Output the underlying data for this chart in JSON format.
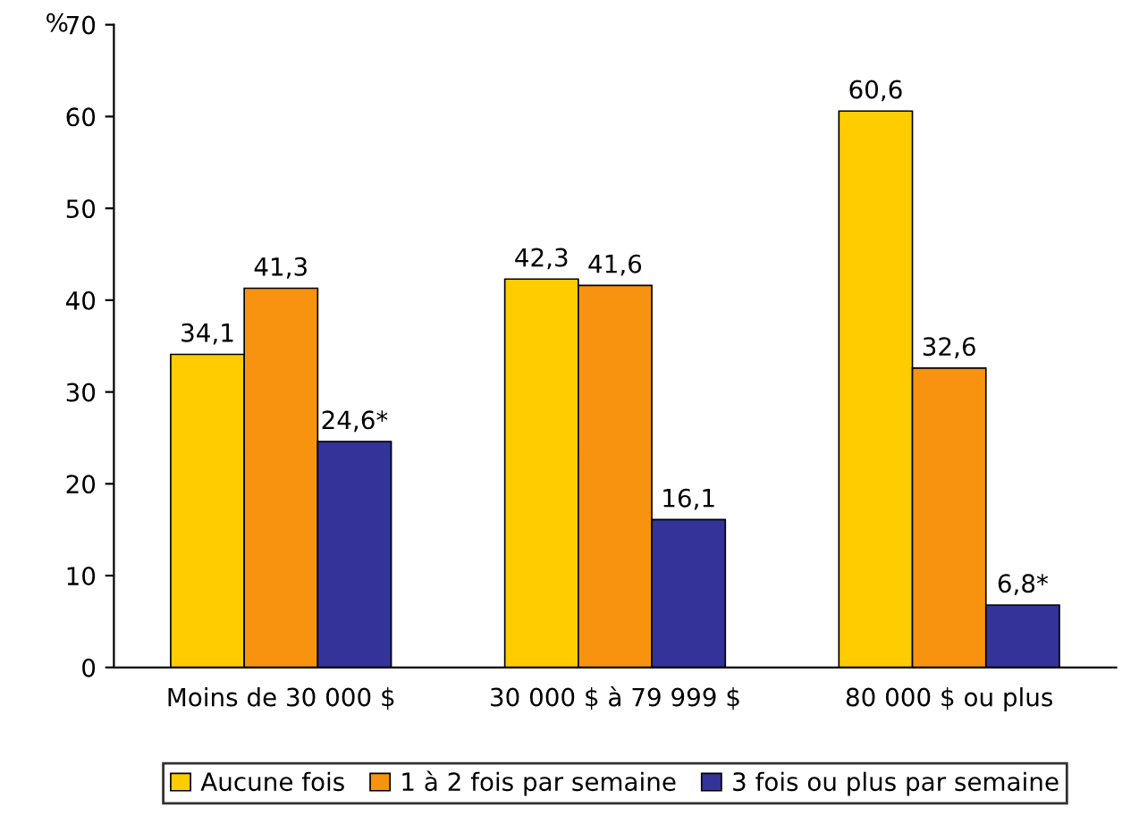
{
  "chart_data": {
    "type": "bar",
    "ylabel": "%",
    "categories": [
      "Moins de 30 000 $",
      "30 000 $ à 79 999 $",
      "80 000 $ ou plus"
    ],
    "series": [
      {
        "name": "Aucune fois",
        "color": "#ffcc00",
        "values": [
          34.1,
          42.3,
          60.6
        ],
        "value_labels": [
          "34,1",
          "42,3",
          "60,6"
        ]
      },
      {
        "name": "1 à 2 fois par semaine",
        "color": "#f7930f",
        "values": [
          41.3,
          41.6,
          32.6
        ],
        "value_labels": [
          "41,3",
          "41,6",
          "32,6"
        ]
      },
      {
        "name": "3 fois ou plus par semaine",
        "color": "#333399",
        "values": [
          24.6,
          16.1,
          6.8
        ],
        "value_labels": [
          "24,6*",
          "16,1",
          "6,8*"
        ]
      }
    ],
    "ylim": [
      0,
      70
    ],
    "yticks": [
      0,
      10,
      20,
      30,
      40,
      50,
      60,
      70
    ],
    "grid": false,
    "legend": "bottom"
  }
}
